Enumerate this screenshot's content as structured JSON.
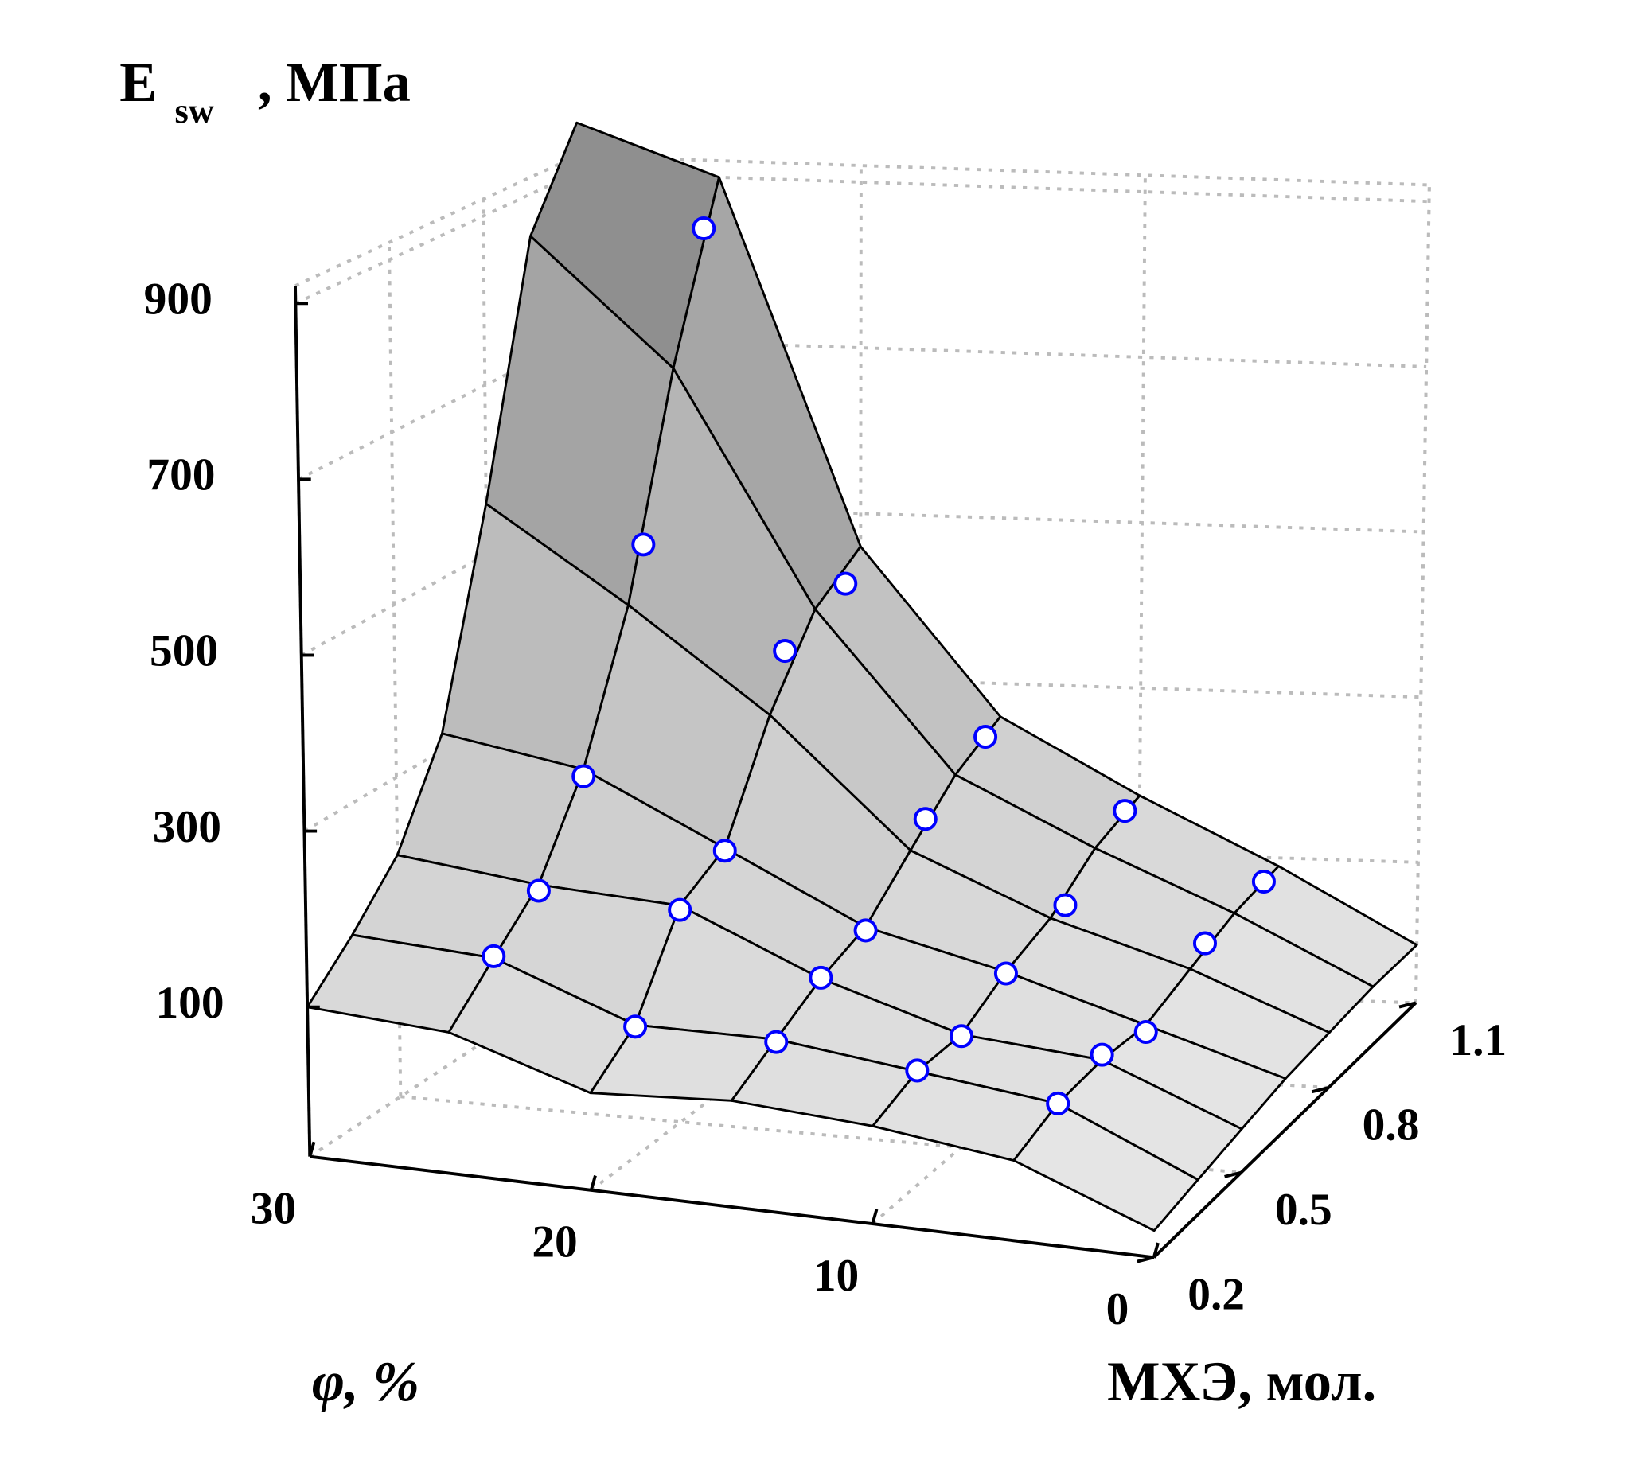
{
  "chart_data": {
    "type": "surface3d",
    "zlabel": "E",
    "zlabel_sub": "sw",
    "zlabel_unit": ", МПа",
    "xlabel": "φ, %",
    "ylabel": "МХЭ, мол.",
    "xlim": [
      0,
      30
    ],
    "ylim": [
      0.2,
      1.1
    ],
    "zlim": [
      -70,
      920
    ],
    "xticks": [
      30,
      20,
      10,
      0
    ],
    "yticks": [
      0.2,
      0.5,
      0.8,
      1.1
    ],
    "zticks": [
      100,
      300,
      500,
      700,
      900
    ],
    "grid": true,
    "surface": {
      "color": "#9a9a9a",
      "x": [
        0,
        5,
        10,
        15,
        20,
        25,
        30
      ],
      "y": [
        0.2,
        0.35,
        0.5,
        0.65,
        0.8,
        0.95,
        1.1
      ],
      "z": [
        [
          -40,
          20,
          40,
          50,
          40,
          90,
          100
        ],
        [
          -30,
          40,
          60,
          80,
          80,
          140,
          150
        ],
        [
          -20,
          45,
          60,
          110,
          180,
          190,
          210
        ],
        [
          -10,
          40,
          90,
          130,
          210,
          290,
          320
        ],
        [
          -5,
          60,
          110,
          180,
          330,
          450,
          560
        ],
        [
          0,
          80,
          150,
          230,
          420,
          700,
          850
        ],
        [
          0,
          90,
          170,
          260,
          460,
          900,
          960
        ]
      ]
    },
    "points": {
      "color": "#0000ff",
      "x": [
        25,
        25,
        25,
        25,
        25,
        20,
        20,
        20,
        20,
        20,
        15,
        15,
        15,
        15,
        15,
        10,
        10,
        10,
        10,
        10,
        5,
        5,
        5,
        5,
        5
      ],
      "y": [
        0.35,
        0.5,
        0.65,
        0.85,
        1.05,
        0.35,
        0.5,
        0.65,
        0.85,
        1.05,
        0.35,
        0.5,
        0.65,
        0.85,
        1.05,
        0.35,
        0.5,
        0.65,
        0.85,
        1.05,
        0.35,
        0.5,
        0.65,
        0.85,
        1.05
      ],
      "z": [
        142,
        183,
        282,
        511,
        848,
        78,
        175,
        207,
        394,
        427,
        77,
        111,
        126,
        204,
        249,
        61,
        58,
        88,
        111,
        166,
        40,
        51,
        32,
        75,
        87
      ]
    }
  }
}
